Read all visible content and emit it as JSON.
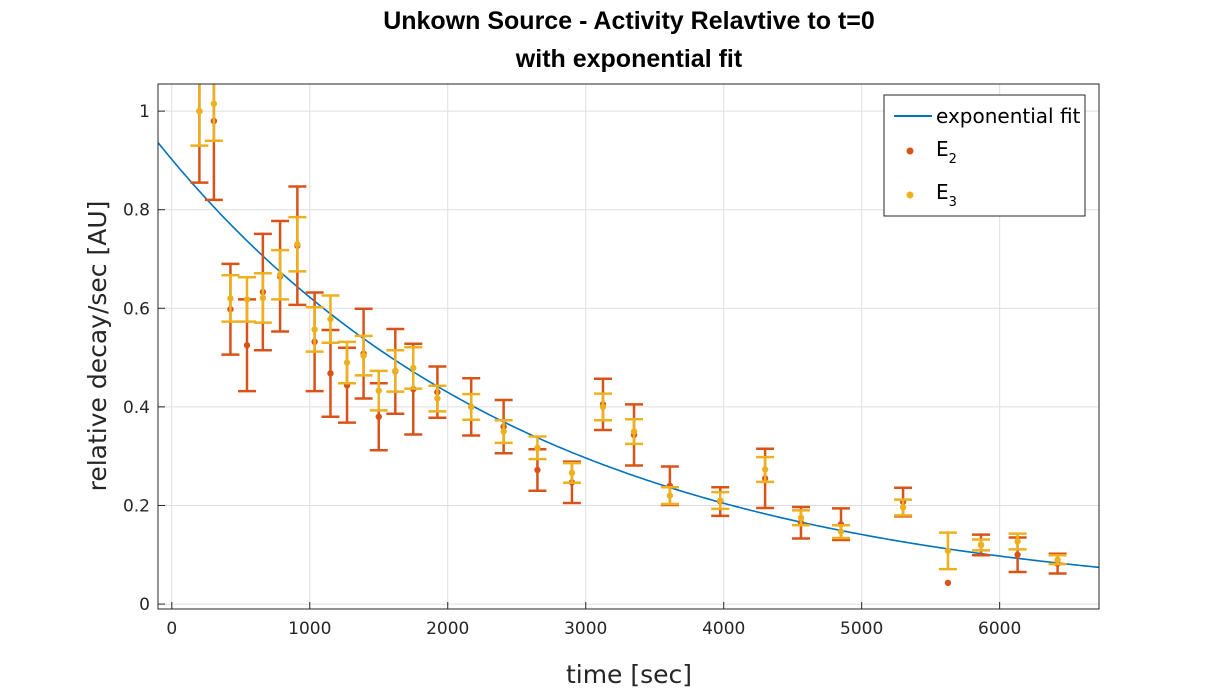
{
  "chart_data": {
    "type": "scatter",
    "title": "Unkown Source - Activity Relavtive to t=0",
    "subtitle": "with exponential fit",
    "xlabel": "time [sec]",
    "ylabel": "relative decay/sec [AU]",
    "xlim": [
      -100,
      6720
    ],
    "ylim": [
      -0.01,
      1.055
    ],
    "xticks": [
      0,
      1000,
      2000,
      3000,
      4000,
      5000,
      6000
    ],
    "xtick_labels": [
      "0",
      "1000",
      "2000",
      "3000",
      "4000",
      "5000",
      "6000"
    ],
    "yticks": [
      0,
      0.2,
      0.4,
      0.6,
      0.8,
      1
    ],
    "ytick_labels": [
      "0",
      "0.2",
      "0.4",
      "0.6",
      "0.8",
      "1"
    ],
    "grid": true,
    "legend_position": "top-right",
    "fit": {
      "name": "exponential fit",
      "color": "#0072BD",
      "amplitude": 0.902,
      "decay_rate": 0.000371
    },
    "series": [
      {
        "name": "E",
        "name_subscript": "2",
        "color": "#D95319",
        "points": [
          {
            "x": 200,
            "y": 1.0,
            "err": 0.145
          },
          {
            "x": 305,
            "y": 0.98,
            "err": 0.16
          },
          {
            "x": 425,
            "y": 0.598,
            "err": 0.092
          },
          {
            "x": 545,
            "y": 0.525,
            "err": 0.093
          },
          {
            "x": 660,
            "y": 0.633,
            "err": 0.118
          },
          {
            "x": 785,
            "y": 0.665,
            "err": 0.112
          },
          {
            "x": 910,
            "y": 0.727,
            "err": 0.12
          },
          {
            "x": 1035,
            "y": 0.532,
            "err": 0.1
          },
          {
            "x": 1150,
            "y": 0.468,
            "err": 0.088
          },
          {
            "x": 1270,
            "y": 0.444,
            "err": 0.076
          },
          {
            "x": 1390,
            "y": 0.508,
            "err": 0.091
          },
          {
            "x": 1500,
            "y": 0.38,
            "err": 0.068
          },
          {
            "x": 1620,
            "y": 0.472,
            "err": 0.086
          },
          {
            "x": 1750,
            "y": 0.436,
            "err": 0.092
          },
          {
            "x": 1925,
            "y": 0.43,
            "err": 0.052
          },
          {
            "x": 2170,
            "y": 0.4,
            "err": 0.058
          },
          {
            "x": 2405,
            "y": 0.36,
            "err": 0.054
          },
          {
            "x": 2650,
            "y": 0.272,
            "err": 0.042
          },
          {
            "x": 2900,
            "y": 0.247,
            "err": 0.042
          },
          {
            "x": 3125,
            "y": 0.405,
            "err": 0.052
          },
          {
            "x": 3350,
            "y": 0.343,
            "err": 0.062
          },
          {
            "x": 3610,
            "y": 0.24,
            "err": 0.039
          },
          {
            "x": 3975,
            "y": 0.208,
            "err": 0.029
          },
          {
            "x": 4300,
            "y": 0.255,
            "err": 0.06
          },
          {
            "x": 4560,
            "y": 0.165,
            "err": 0.032
          },
          {
            "x": 4850,
            "y": 0.162,
            "err": 0.032
          },
          {
            "x": 5300,
            "y": 0.207,
            "err": 0.029
          },
          {
            "x": 5625,
            "y": 0.043,
            "err": 0
          },
          {
            "x": 5865,
            "y": 0.12,
            "err": 0.021
          },
          {
            "x": 6130,
            "y": 0.1,
            "err": 0.035
          },
          {
            "x": 6420,
            "y": 0.082,
            "err": 0.02
          }
        ]
      },
      {
        "name": "E",
        "name_subscript": "3",
        "color": "#EDB120",
        "points": [
          {
            "x": 200,
            "y": 1.0,
            "err": 0.07
          },
          {
            "x": 305,
            "y": 1.015,
            "err": 0.075
          },
          {
            "x": 425,
            "y": 0.62,
            "err": 0.047
          },
          {
            "x": 545,
            "y": 0.618,
            "err": 0.045
          },
          {
            "x": 660,
            "y": 0.621,
            "err": 0.05
          },
          {
            "x": 785,
            "y": 0.668,
            "err": 0.05
          },
          {
            "x": 910,
            "y": 0.73,
            "err": 0.055
          },
          {
            "x": 1035,
            "y": 0.557,
            "err": 0.045
          },
          {
            "x": 1150,
            "y": 0.578,
            "err": 0.048
          },
          {
            "x": 1270,
            "y": 0.49,
            "err": 0.042
          },
          {
            "x": 1390,
            "y": 0.504,
            "err": 0.04
          },
          {
            "x": 1500,
            "y": 0.433,
            "err": 0.04
          },
          {
            "x": 1620,
            "y": 0.473,
            "err": 0.042
          },
          {
            "x": 1750,
            "y": 0.479,
            "err": 0.042
          },
          {
            "x": 1925,
            "y": 0.417,
            "err": 0.026
          },
          {
            "x": 2170,
            "y": 0.4,
            "err": 0.026
          },
          {
            "x": 2405,
            "y": 0.35,
            "err": 0.023
          },
          {
            "x": 2650,
            "y": 0.317,
            "err": 0.023
          },
          {
            "x": 2900,
            "y": 0.266,
            "err": 0.02
          },
          {
            "x": 3125,
            "y": 0.4,
            "err": 0.027
          },
          {
            "x": 3350,
            "y": 0.35,
            "err": 0.025
          },
          {
            "x": 3610,
            "y": 0.22,
            "err": 0.017
          },
          {
            "x": 3975,
            "y": 0.21,
            "err": 0.017
          },
          {
            "x": 4300,
            "y": 0.273,
            "err": 0.025
          },
          {
            "x": 4560,
            "y": 0.175,
            "err": 0.015
          },
          {
            "x": 4850,
            "y": 0.147,
            "err": 0.013
          },
          {
            "x": 5300,
            "y": 0.196,
            "err": 0.016
          },
          {
            "x": 5625,
            "y": 0.108,
            "err": 0.037
          },
          {
            "x": 5865,
            "y": 0.12,
            "err": 0.011
          },
          {
            "x": 6130,
            "y": 0.127,
            "err": 0.016
          },
          {
            "x": 6420,
            "y": 0.09,
            "err": 0.009
          }
        ]
      }
    ]
  }
}
